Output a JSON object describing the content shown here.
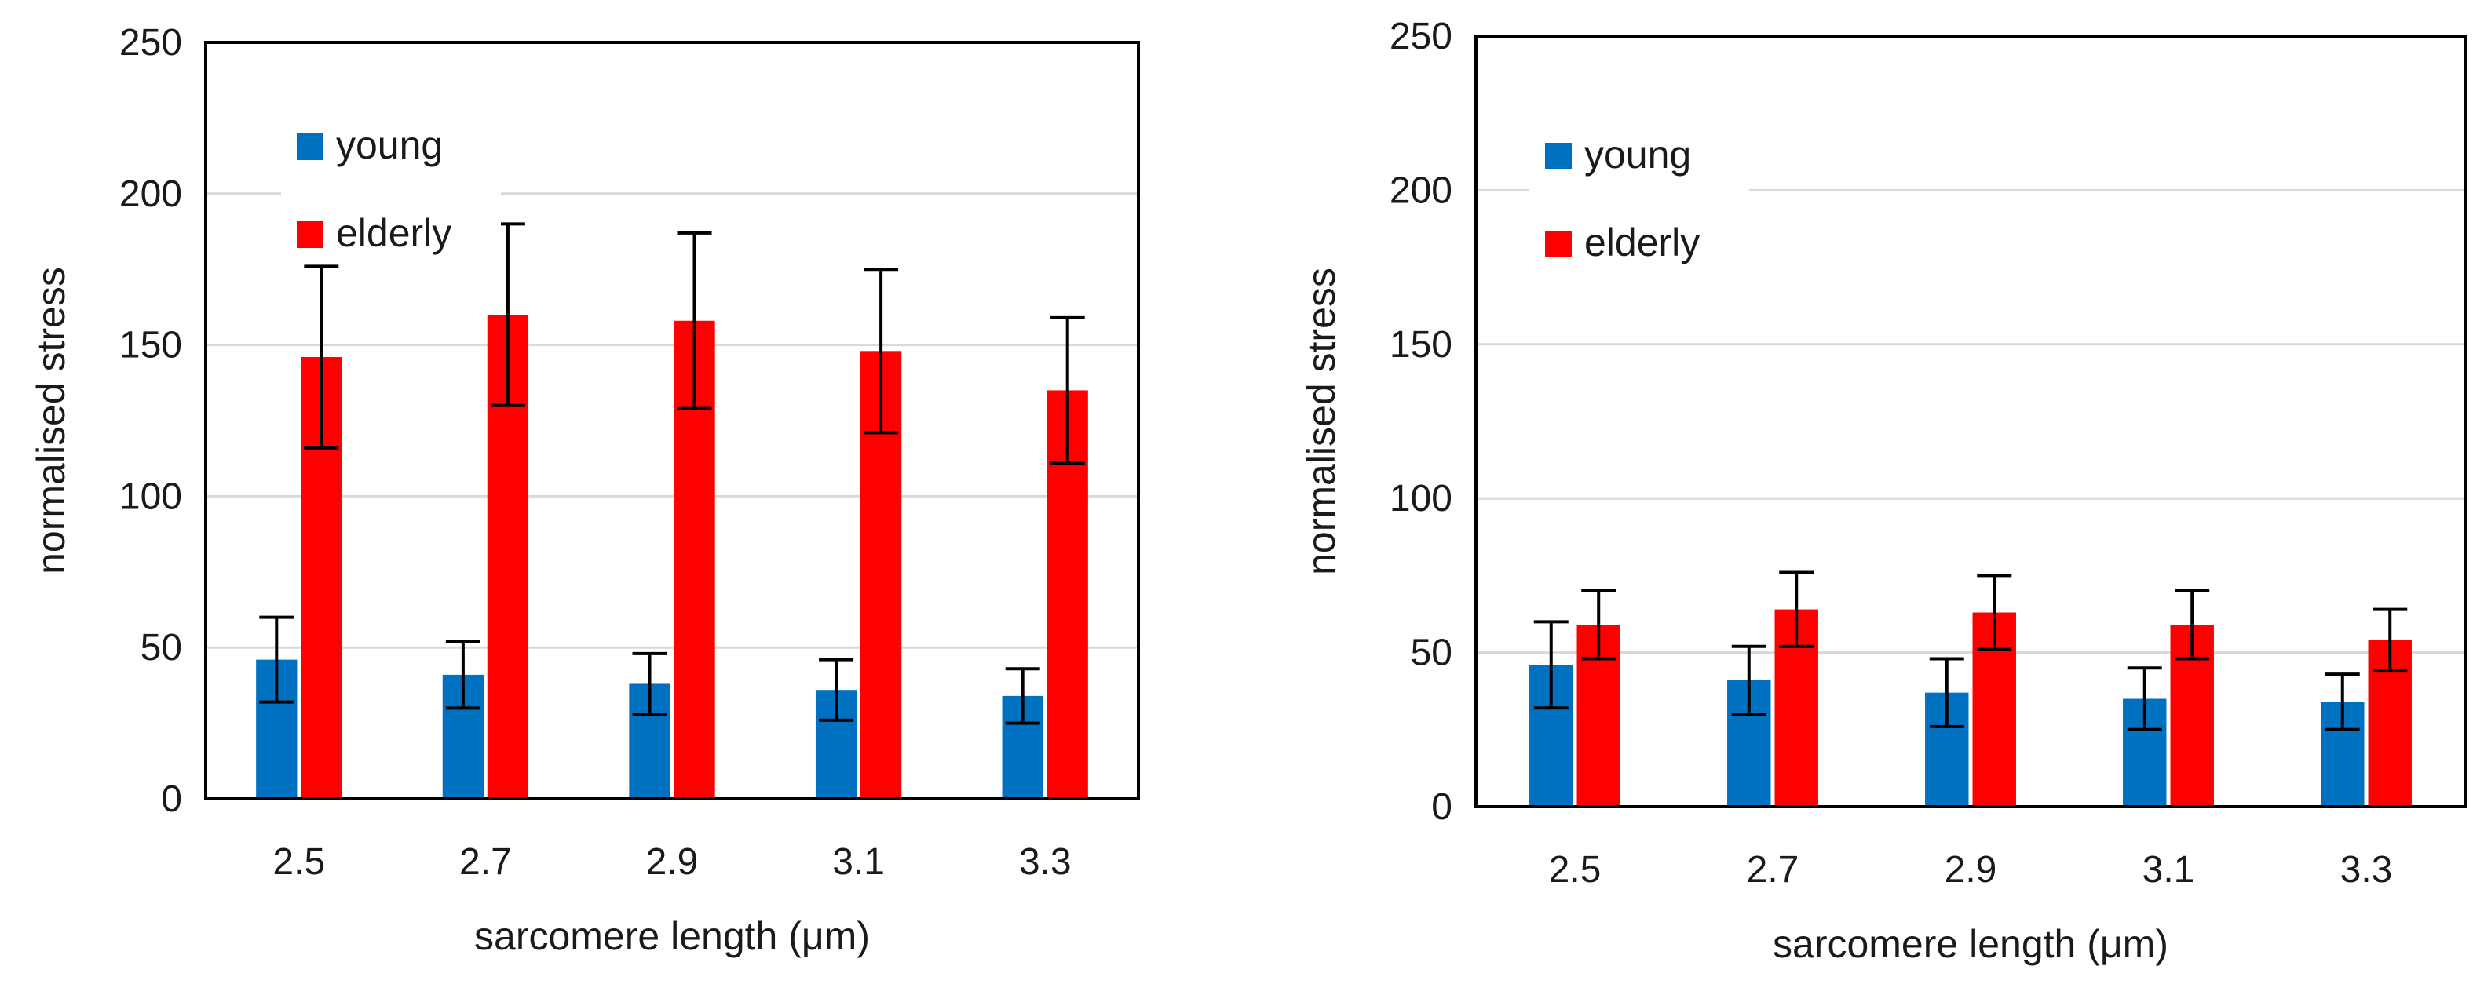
{
  "colors": {
    "young": "#0070C0",
    "elderly": "#FF0000",
    "grid": "#D9D9D9",
    "frame": "#000000",
    "error_bar": "#000000"
  },
  "chart_data": [
    {
      "type": "bar",
      "categories": [
        "2.5",
        "2.7",
        "2.9",
        "3.1",
        "3.3"
      ],
      "series": [
        {
          "name": "young",
          "values": [
            46,
            41,
            38,
            36,
            34
          ],
          "error": [
            14,
            11,
            10,
            10,
            9
          ]
        },
        {
          "name": "elderly",
          "values": [
            146,
            160,
            158,
            148,
            135
          ],
          "error": [
            30,
            30,
            29,
            27,
            24
          ]
        }
      ],
      "title": "",
      "xlabel": "sarcomere length (μm)",
      "ylabel": "normalised stress",
      "ylim": [
        0,
        250
      ],
      "yticks": [
        "0",
        "50",
        "100",
        "150",
        "200",
        "250"
      ],
      "grid": true,
      "legend": "top-left"
    },
    {
      "type": "bar",
      "categories": [
        "2.5",
        "2.7",
        "2.9",
        "3.1",
        "3.3"
      ],
      "series": [
        {
          "name": "young",
          "values": [
            46,
            41,
            37,
            35,
            34
          ],
          "error": [
            14,
            11,
            11,
            10,
            9
          ]
        },
        {
          "name": "elderly",
          "values": [
            59,
            64,
            63,
            59,
            54
          ],
          "error": [
            11,
            12,
            12,
            11,
            10
          ]
        }
      ],
      "title": "",
      "xlabel": "sarcomere length (μm)",
      "ylabel": "normalised stress",
      "ylim": [
        0,
        250
      ],
      "yticks": [
        "0",
        "50",
        "100",
        "150",
        "200",
        "250"
      ],
      "grid": true,
      "legend": "top-left"
    }
  ]
}
